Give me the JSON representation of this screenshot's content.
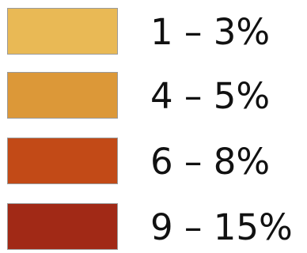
{
  "legend": {
    "items": [
      {
        "label": "1 – 3%",
        "color": "#E9B955"
      },
      {
        "label": "4 – 5%",
        "color": "#DC9838"
      },
      {
        "label": "6 – 8%",
        "color": "#C24A17"
      },
      {
        "label": "9 – 15%",
        "color": "#A12916"
      }
    ]
  }
}
